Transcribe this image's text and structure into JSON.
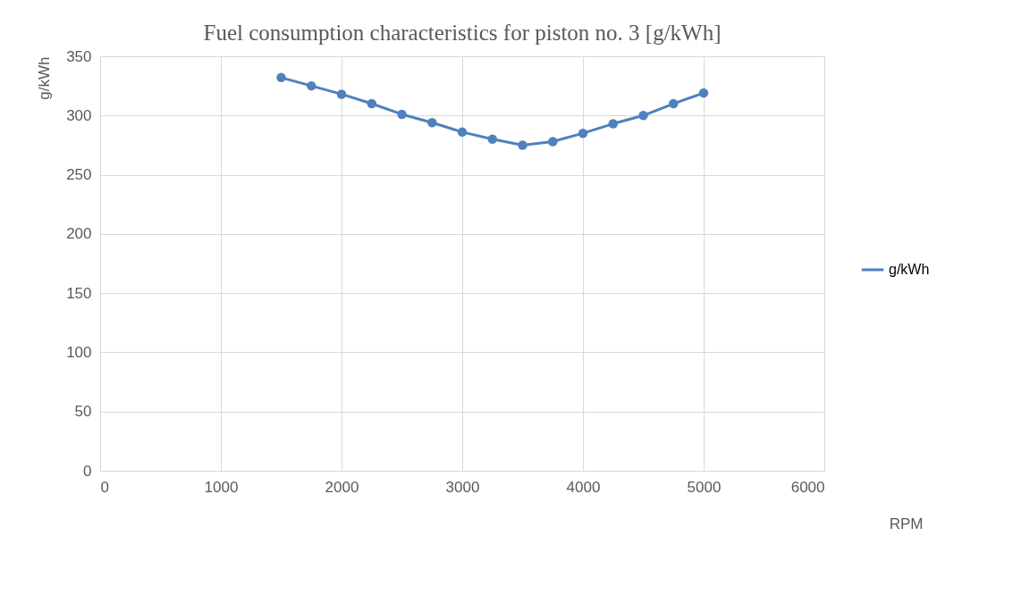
{
  "chart_data": {
    "type": "line",
    "title": "Fuel consumption characteristics for piston no. 3 [g/kWh]",
    "xlabel": "RPM",
    "ylabel": "g/kWh",
    "x": [
      1500,
      1750,
      2000,
      2250,
      2500,
      2750,
      3000,
      3250,
      3500,
      3750,
      4000,
      4250,
      4500,
      4750,
      5000
    ],
    "series": [
      {
        "name": "g/kWh",
        "color": "#4f81bd",
        "values": [
          332,
          325,
          318,
          310,
          301,
          294,
          286,
          280,
          275,
          278,
          285,
          293,
          300,
          310,
          319
        ]
      }
    ],
    "xlim": [
      0,
      6000
    ],
    "xticks": [
      0,
      1000,
      2000,
      3000,
      4000,
      5000,
      6000
    ],
    "ylim": [
      0,
      350
    ],
    "yticks": [
      0,
      50,
      100,
      150,
      200,
      250,
      300,
      350
    ],
    "grid": true,
    "legend": "right",
    "marker": "circle",
    "line_style": "solid"
  }
}
